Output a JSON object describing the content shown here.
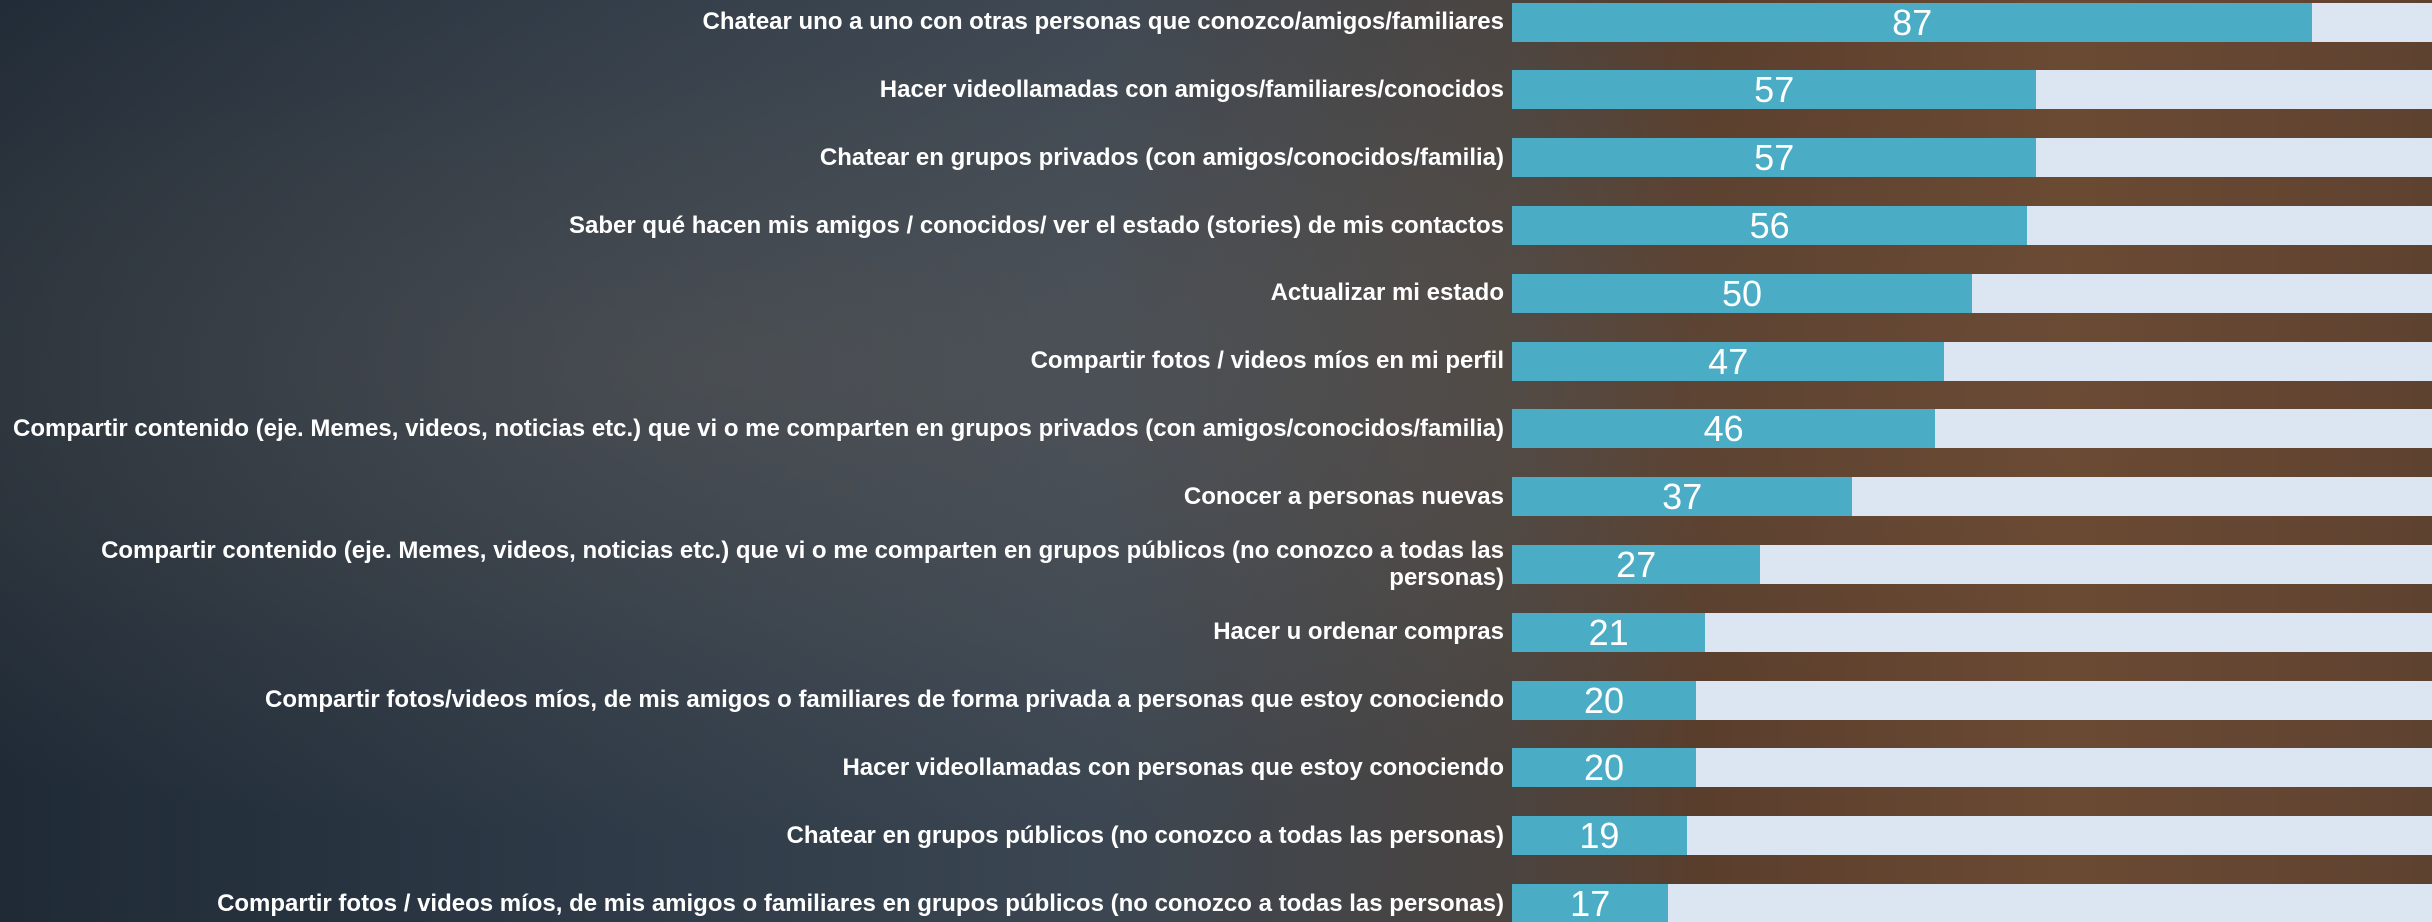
{
  "chart_data": {
    "type": "bar",
    "orientation": "horizontal",
    "categories": [
      "Chatear uno a uno con otras personas que conozco/amigos/familiares",
      "Hacer videollamadas con amigos/familiares/conocidos",
      "Chatear en grupos privados (con amigos/conocidos/familia)",
      "Saber qué hacen mis amigos / conocidos/ ver el estado (stories) de mis contactos",
      "Actualizar mi estado",
      "Compartir fotos / videos míos en mi perfil",
      "Compartir contenido (eje. Memes, videos, noticias etc.) que vi o me comparten en grupos privados (con amigos/conocidos/familia)",
      "Conocer a personas nuevas",
      "Compartir contenido (eje. Memes, videos, noticias etc.) que vi o me comparten en grupos públicos (no conozco a todas las personas)",
      "Hacer u ordenar compras",
      "Compartir fotos/videos míos, de mis amigos o familiares de forma privada a personas que estoy conociendo",
      "Hacer videollamadas con personas que estoy conociendo",
      "Chatear en grupos públicos (no conozco a todas las personas)",
      "Compartir fotos / videos míos, de mis amigos o familiares en grupos públicos (no conozco a todas las personas)"
    ],
    "values": [
      87,
      57,
      57,
      56,
      50,
      47,
      46,
      37,
      27,
      21,
      20,
      20,
      19,
      17
    ],
    "color": "#4bacc6",
    "track_color": "#dce6f2",
    "xlim": [
      0,
      100
    ]
  }
}
